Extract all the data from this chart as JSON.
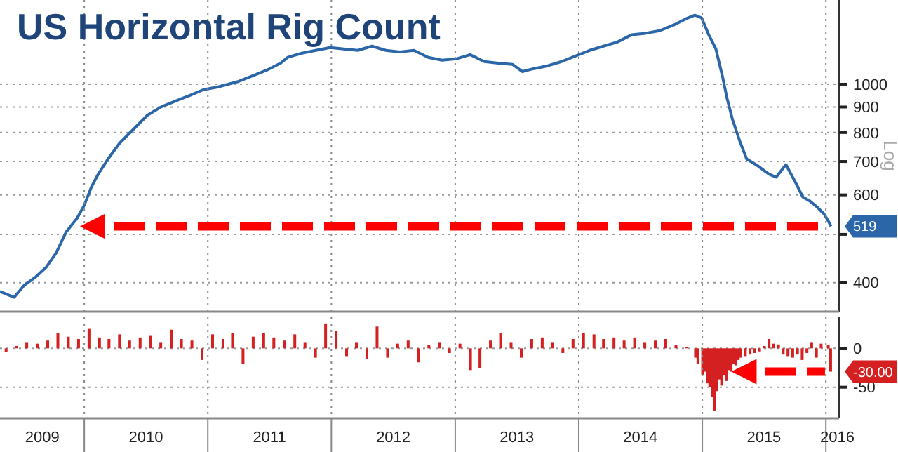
{
  "chart_data": [
    {
      "type": "line",
      "title": "US Horizontal Rig Count",
      "ylabel": "Log",
      "log": true,
      "grid": true,
      "tick_labels": "y",
      "xlim": [
        "2009-04-27",
        "2016-02-09"
      ],
      "xticks": [
        {
          "value": "2010-01-01",
          "label": null
        },
        {
          "value": "2011-01-01",
          "label": null
        },
        {
          "value": "2012-01-01",
          "label": null
        },
        {
          "value": "2013-01-01",
          "label": null
        },
        {
          "value": "2014-01-01",
          "label": null
        },
        {
          "value": "2015-01-01",
          "label": null
        },
        {
          "value": "2016-01-01",
          "label": null
        }
      ],
      "ylim": [
        350,
        1475
      ],
      "yticks": [
        400,
        {
          "value": 500,
          "label": null
        },
        600,
        700,
        800,
        900,
        1000
      ],
      "annotations": [
        {
          "text": "519",
          "x": "2016-01-16",
          "y": 519
        }
      ],
      "series": [
        {
          "color": "#2a66a8",
          "x": [
            "2009-04-27",
            "2009-06-08",
            "2009-07-07",
            "2009-08-09",
            "2009-09-11",
            "2009-10-10",
            "2009-11-08",
            "2009-12-11",
            "2010-01-01",
            "2010-01-22",
            "2010-02-11",
            "2010-03-12",
            "2010-04-15",
            "2010-05-26",
            "2010-07-07",
            "2010-08-17",
            "2010-09-27",
            "2010-11-08",
            "2010-12-19",
            "2011-01-30",
            "2011-04-02",
            "2011-05-14",
            "2011-06-24",
            "2011-08-04",
            "2011-08-25",
            "2011-10-06",
            "2011-11-16",
            "2011-12-28",
            "2012-02-07",
            "2012-03-19",
            "2012-04-30",
            "2012-06-10",
            "2012-07-22",
            "2012-09-01",
            "2012-10-13",
            "2012-11-23",
            "2013-01-04",
            "2013-02-14",
            "2013-03-28",
            "2013-05-08",
            "2013-06-19",
            "2013-07-18",
            "2013-08-20",
            "2013-09-30",
            "2013-11-11",
            "2013-12-22",
            "2014-02-02",
            "2014-03-15",
            "2014-04-25",
            "2014-06-06",
            "2014-07-17",
            "2014-08-28",
            "2014-10-08",
            "2014-11-19",
            "2014-12-10",
            "2014-12-30",
            "2015-01-20",
            "2015-02-10",
            "2015-03-02",
            "2015-03-15",
            "2015-03-31",
            "2015-04-21",
            "2015-05-12",
            "2015-06-14",
            "2015-07-17",
            "2015-08-07",
            "2015-09-05",
            "2015-10-04",
            "2015-10-25",
            "2015-11-15",
            "2015-12-05",
            "2015-12-26",
            "2016-01-08",
            "2016-01-16"
          ],
          "values": [
            384,
            374,
            395,
            410,
            430,
            459,
            505,
            539,
            572,
            622,
            660,
            708,
            761,
            812,
            867,
            901,
            925,
            949,
            975,
            987,
            1013,
            1040,
            1067,
            1102,
            1132,
            1154,
            1169,
            1184,
            1177,
            1169,
            1192,
            1169,
            1161,
            1169,
            1132,
            1117,
            1124,
            1146,
            1110,
            1102,
            1096,
            1060,
            1074,
            1088,
            1110,
            1139,
            1169,
            1192,
            1215,
            1256,
            1265,
            1280,
            1314,
            1358,
            1375,
            1358,
            1256,
            1177,
            1033,
            937,
            850,
            771,
            708,
            686,
            660,
            651,
            690,
            634,
            594,
            583,
            568,
            550,
            532,
            519
          ]
        }
      ]
    },
    {
      "type": "bar",
      "grid": true,
      "xlim": [
        "2009-04-27",
        "2016-02-09"
      ],
      "xticks": [
        {
          "value": "2009-08-30",
          "label": "2009"
        },
        {
          "value": "2010-01-01",
          "label": null
        },
        {
          "value": "2010-07-02",
          "label": "2010"
        },
        {
          "value": "2011-01-01",
          "label": null
        },
        {
          "value": "2011-07-02",
          "label": "2011"
        },
        {
          "value": "2012-01-01",
          "label": null
        },
        {
          "value": "2012-07-02",
          "label": "2012"
        },
        {
          "value": "2013-01-01",
          "label": null
        },
        {
          "value": "2013-07-02",
          "label": "2013"
        },
        {
          "value": "2014-01-01",
          "label": null
        },
        {
          "value": "2014-07-02",
          "label": "2014"
        },
        {
          "value": "2015-01-01",
          "label": null
        },
        {
          "value": "2015-07-02",
          "label": "2015"
        },
        {
          "value": "2016-01-01",
          "label": null
        },
        {
          "value": "2016-02-04",
          "label": "2016"
        }
      ],
      "ylim": [
        -90,
        40
      ],
      "yticks": [
        -50,
        0
      ],
      "annotations": [
        {
          "text": "-30.00",
          "x": "2016-01-15",
          "y": -30
        }
      ],
      "series": [
        {
          "color": "#d42020",
          "x": [
            "2009-05-15",
            "2009-06-15",
            "2009-07-15",
            "2009-08-15",
            "2009-09-15",
            "2009-10-15",
            "2009-11-15",
            "2009-12-15",
            "2010-01-15",
            "2010-02-15",
            "2010-03-15",
            "2010-04-15",
            "2010-05-15",
            "2010-06-15",
            "2010-07-15",
            "2010-08-15",
            "2010-09-15",
            "2010-10-15",
            "2010-11-15",
            "2010-12-15",
            "2011-01-15",
            "2011-02-15",
            "2011-03-15",
            "2011-04-15",
            "2011-05-15",
            "2011-06-15",
            "2011-07-15",
            "2011-08-15",
            "2011-09-15",
            "2011-10-15",
            "2011-11-15",
            "2011-12-15",
            "2012-01-15",
            "2012-02-15",
            "2012-03-15",
            "2012-04-15",
            "2012-05-15",
            "2012-06-15",
            "2012-07-15",
            "2012-08-15",
            "2012-09-15",
            "2012-10-15",
            "2012-11-15",
            "2012-12-15",
            "2013-01-15",
            "2013-02-15",
            "2013-03-15",
            "2013-04-15",
            "2013-05-15",
            "2013-06-15",
            "2013-07-15",
            "2013-08-15",
            "2013-09-15",
            "2013-10-15",
            "2013-11-15",
            "2013-12-15",
            "2014-01-15",
            "2014-02-15",
            "2014-03-15",
            "2014-04-15",
            "2014-05-15",
            "2014-06-15",
            "2014-07-15",
            "2014-08-15",
            "2014-09-15",
            "2014-10-15",
            "2014-11-15",
            "2014-12-12",
            "2014-12-19",
            "2015-01-02",
            "2015-01-09",
            "2015-01-16",
            "2015-01-23",
            "2015-01-30",
            "2015-02-06",
            "2015-02-13",
            "2015-02-20",
            "2015-02-27",
            "2015-03-06",
            "2015-03-13",
            "2015-03-20",
            "2015-03-27",
            "2015-04-03",
            "2015-04-10",
            "2015-04-17",
            "2015-04-24",
            "2015-05-08",
            "2015-05-22",
            "2015-06-05",
            "2015-06-19",
            "2015-07-03",
            "2015-07-17",
            "2015-07-31",
            "2015-08-14",
            "2015-08-28",
            "2015-09-11",
            "2015-09-25",
            "2015-10-09",
            "2015-10-23",
            "2015-11-06",
            "2015-11-20",
            "2015-12-04",
            "2015-12-18",
            "2016-01-08",
            "2016-01-15"
          ],
          "values": [
            -5,
            3,
            8,
            6,
            10,
            20,
            15,
            12,
            25,
            14,
            12,
            18,
            10,
            14,
            16,
            8,
            24,
            12,
            10,
            -15,
            18,
            12,
            20,
            -20,
            15,
            20,
            14,
            10,
            18,
            8,
            -12,
            32,
            22,
            -10,
            8,
            -14,
            28,
            -12,
            6,
            10,
            -18,
            4,
            8,
            -6,
            6,
            -28,
            -25,
            10,
            20,
            8,
            -12,
            12,
            14,
            8,
            -6,
            12,
            20,
            18,
            12,
            14,
            10,
            14,
            8,
            10,
            12,
            4,
            2,
            -12,
            -20,
            -35,
            -30,
            -45,
            -50,
            -62,
            -80,
            -55,
            -40,
            -48,
            -35,
            -42,
            -28,
            -30,
            -20,
            -22,
            -15,
            -12,
            -10,
            -8,
            -6,
            -4,
            3,
            12,
            6,
            5,
            -8,
            -10,
            -12,
            -8,
            -15,
            -6,
            8,
            -12,
            6,
            4,
            -30
          ]
        }
      ]
    }
  ]
}
